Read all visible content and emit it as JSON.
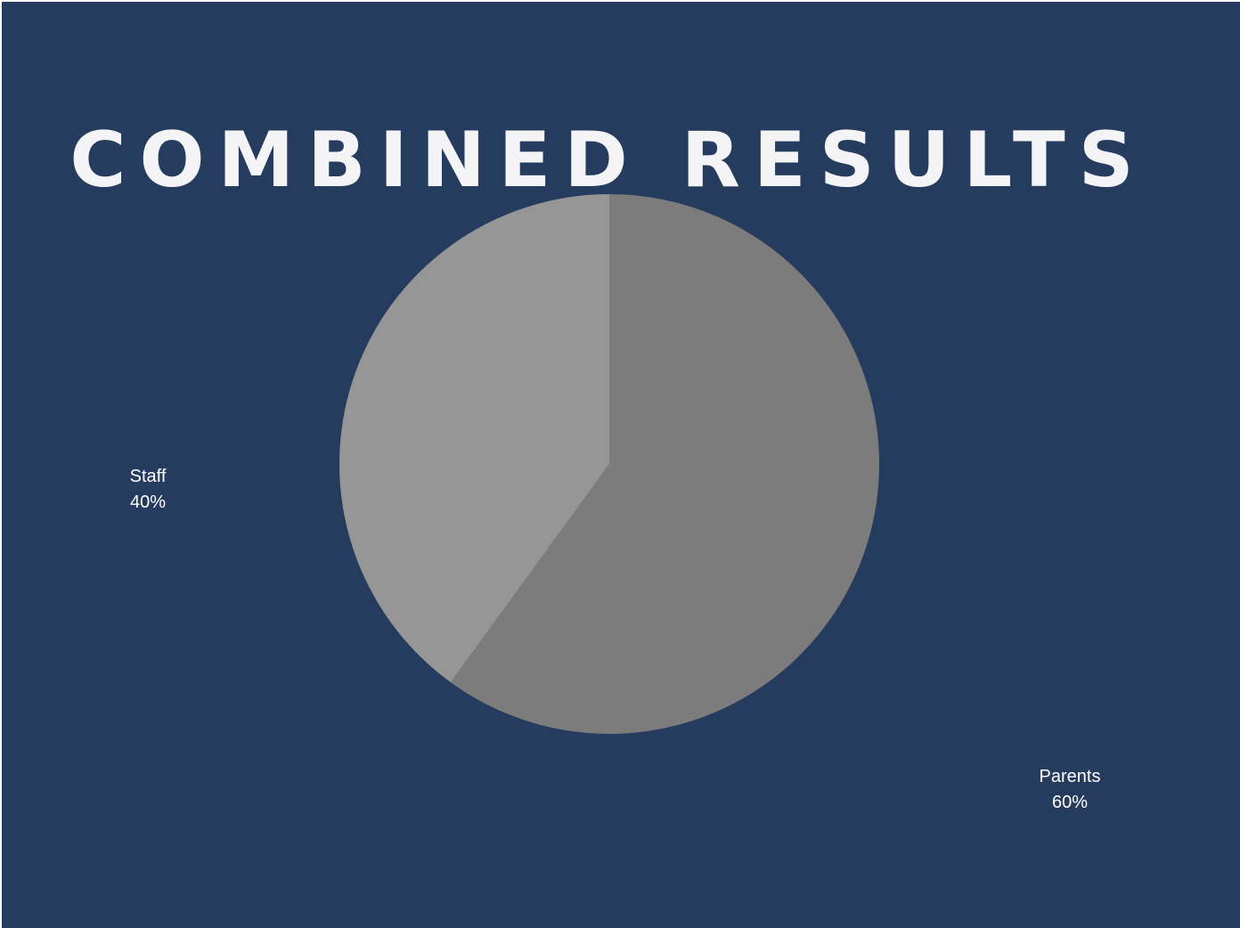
{
  "chart_data": {
    "type": "pie",
    "title": "COMBINED RESULTS",
    "slices": [
      {
        "label": "Parents",
        "value": 60,
        "display": "60%",
        "color": "#7c7c7c"
      },
      {
        "label": "Staff",
        "value": 40,
        "display": "40%",
        "color": "#969696"
      }
    ],
    "start": "12 o'clock",
    "direction": "clockwise",
    "legend": "none",
    "label_placement": "outside"
  },
  "colors": {
    "background": "#253c5e",
    "title_text": "#f4f4f6",
    "label_text": "#ffffff"
  }
}
